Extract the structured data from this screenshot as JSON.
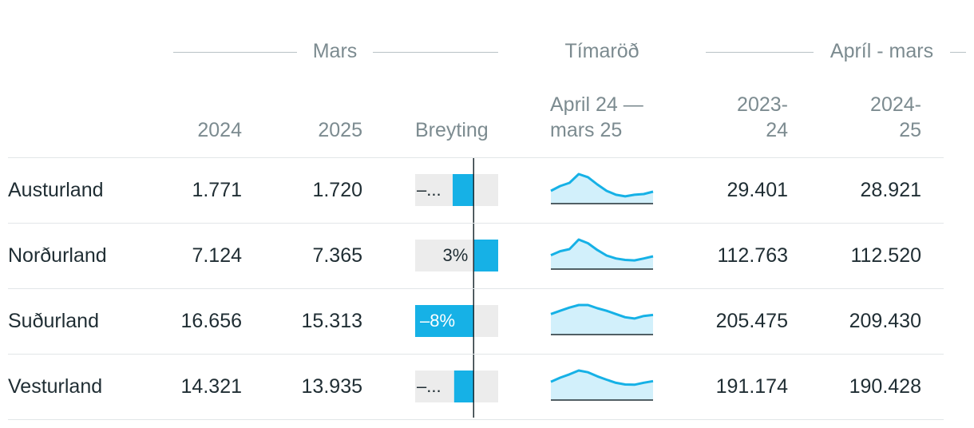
{
  "groups": [
    "Mars",
    "Tímaröð",
    "Apríl - mars"
  ],
  "headers": {
    "mars_2024": "2024",
    "mars_2025": "2025",
    "change": "Breyting",
    "series": [
      "April 24 —",
      "mars 25"
    ],
    "period_1": [
      "2023-",
      "24"
    ],
    "period_2": [
      "2024-",
      "25"
    ]
  },
  "change_axis": {
    "lim": [
      -8.1,
      3.4
    ]
  },
  "rows": [
    {
      "region": "Austurland",
      "mars_2024": "1.771",
      "mars_2025": "1.720",
      "change": -2.9,
      "change_label": "–...",
      "series": [
        1840,
        2530,
        2990,
        4250,
        3800,
        2760,
        1840,
        1270,
        1040,
        1270,
        1380,
        1720
      ],
      "period_1": "29.401",
      "period_2": "28.921"
    },
    {
      "region": "Norðurland",
      "mars_2024": "7.124",
      "mars_2025": "7.365",
      "change": 3.4,
      "change_label": "3%",
      "series": [
        8000,
        10300,
        11500,
        17000,
        14900,
        11000,
        7800,
        6100,
        5300,
        5000,
        6100,
        7365
      ],
      "period_1": "112.763",
      "period_2": "112.520"
    },
    {
      "region": "Suðurland",
      "mars_2024": "16.656",
      "mars_2025": "15.313",
      "change": -8.1,
      "change_label": "–8%",
      "series": [
        16000,
        18500,
        21000,
        23000,
        23000,
        20500,
        18500,
        16000,
        13500,
        12500,
        14500,
        15313
      ],
      "period_1": "205.475",
      "period_2": "209.430"
    },
    {
      "region": "Vesturland",
      "mars_2024": "14.321",
      "mars_2025": "13.935",
      "change": -2.7,
      "change_label": "–...",
      "series": [
        13500,
        16500,
        19000,
        21800,
        20500,
        17500,
        15000,
        12700,
        11500,
        11300,
        12800,
        13935
      ],
      "period_1": "191.174",
      "period_2": "190.428"
    }
  ]
}
